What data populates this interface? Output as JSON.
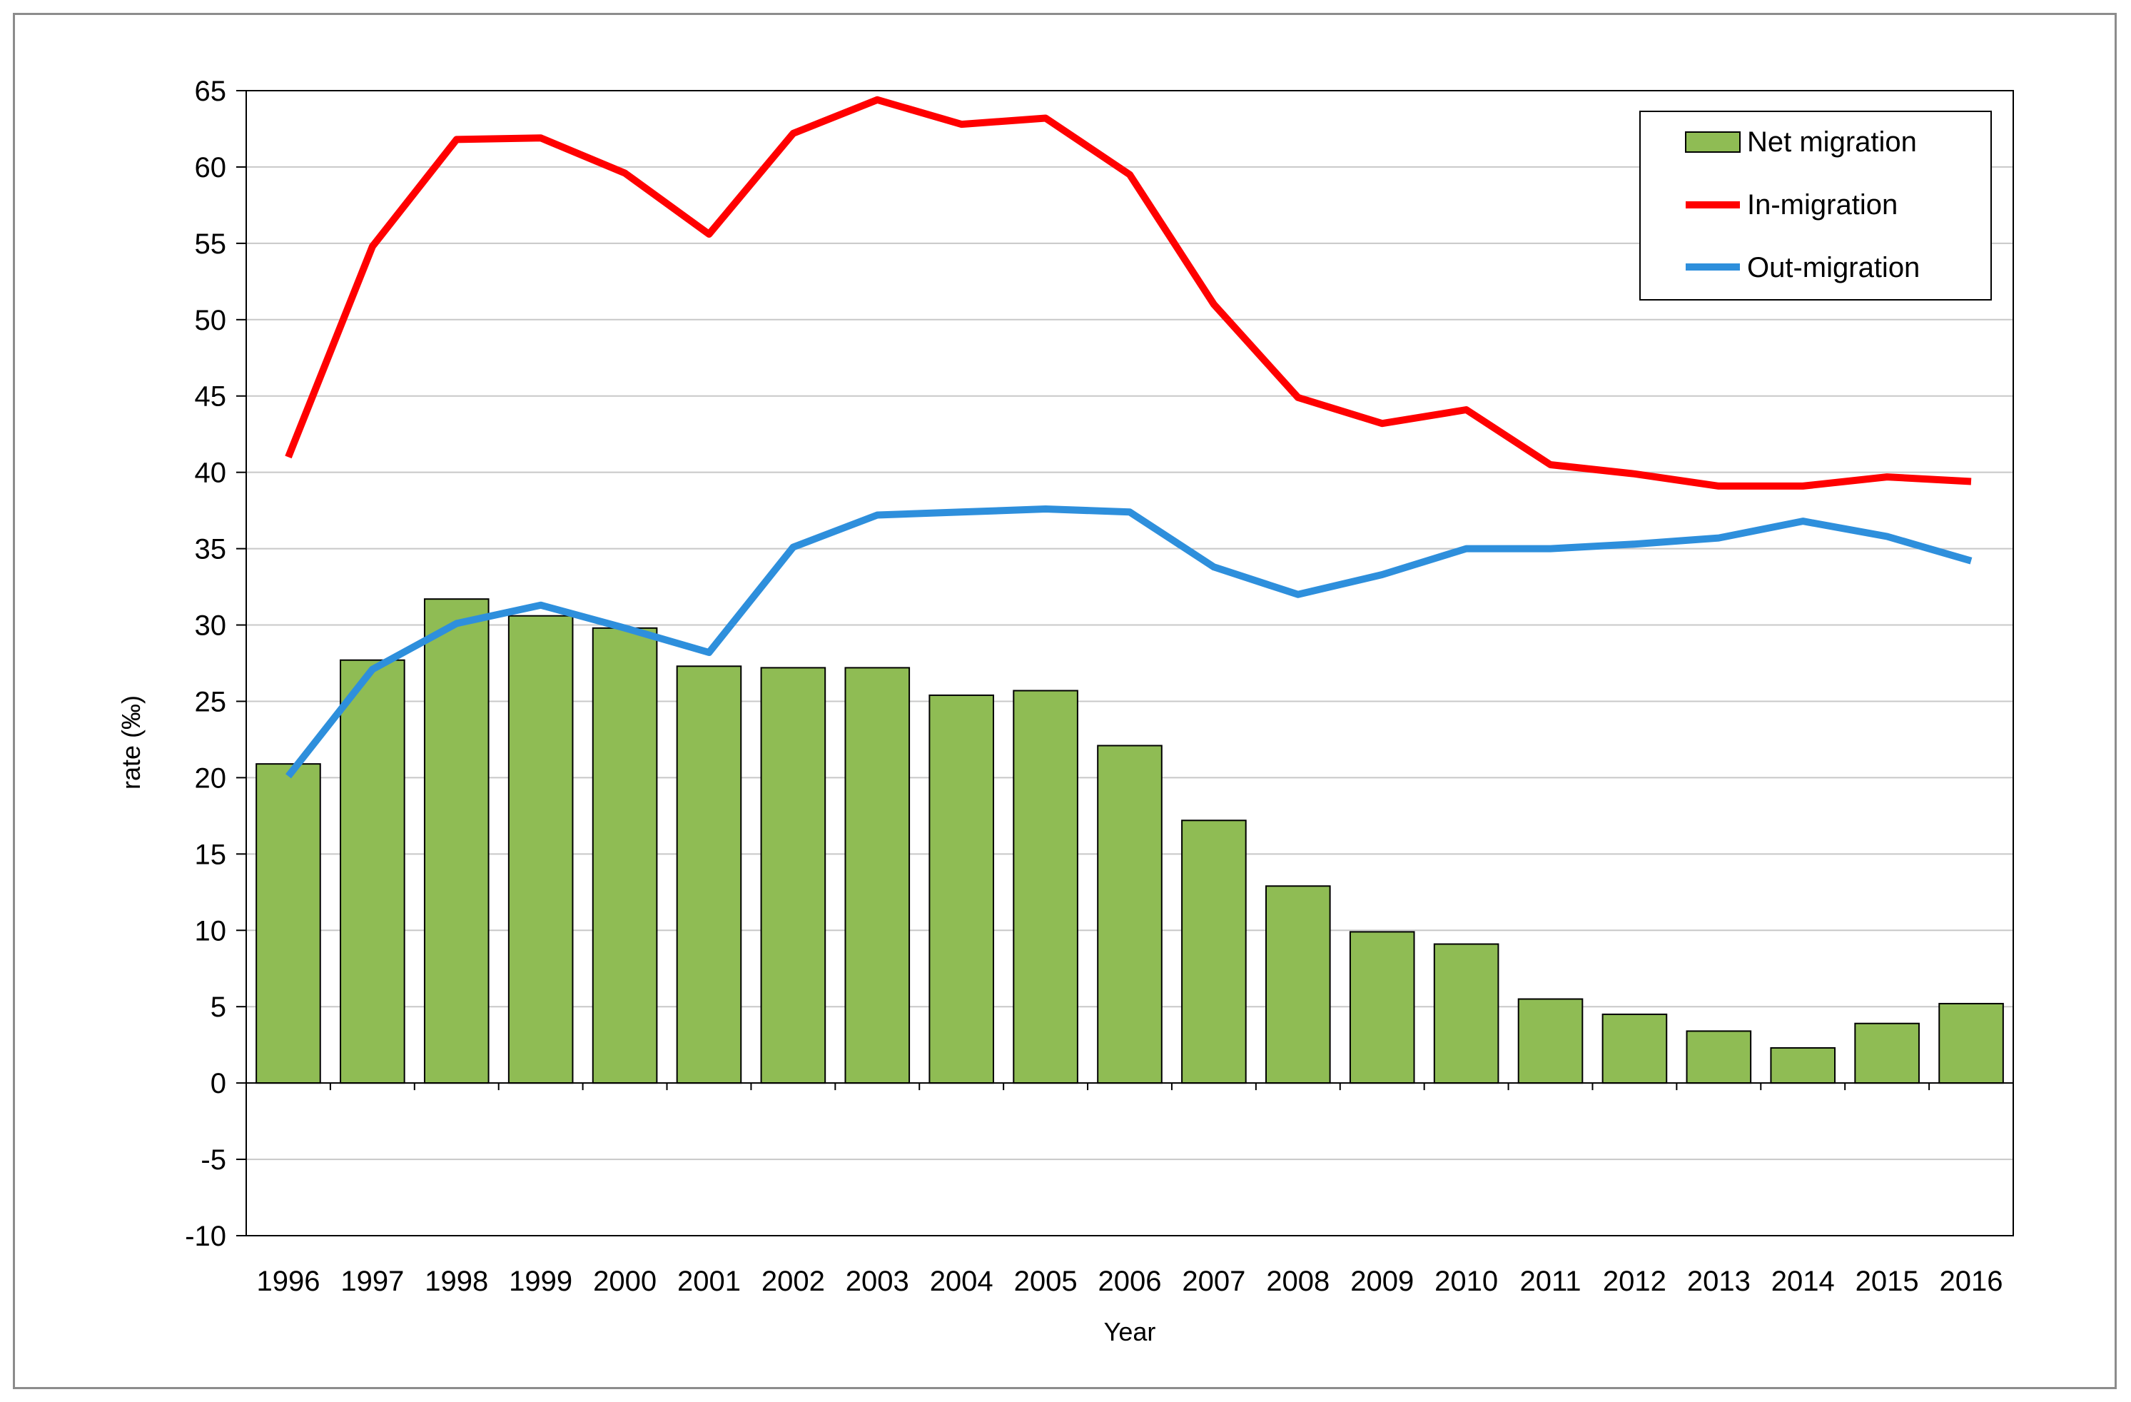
{
  "chart_data": {
    "type": "bar",
    "title": "",
    "xlabel": "Year",
    "ylabel": "rate (‰)",
    "ylim": [
      -10,
      65
    ],
    "ytick_step": 5,
    "grid": true,
    "legend_position": "top-right",
    "categories": [
      "1996",
      "1997",
      "1998",
      "1999",
      "2000",
      "2001",
      "2002",
      "2003",
      "2004",
      "2005",
      "2006",
      "2007",
      "2008",
      "2009",
      "2010",
      "2011",
      "2012",
      "2013",
      "2014",
      "2015",
      "2016"
    ],
    "series": [
      {
        "name": "Net migration",
        "kind": "bar",
        "color": "#8fbc54",
        "values": [
          20.9,
          27.7,
          31.7,
          30.6,
          29.8,
          27.3,
          27.2,
          27.2,
          25.4,
          25.7,
          22.1,
          17.2,
          12.9,
          9.9,
          9.1,
          5.5,
          4.5,
          3.4,
          2.3,
          3.9,
          5.2
        ]
      },
      {
        "name": "In-migration",
        "kind": "line",
        "color": "#ff0000",
        "values": [
          41.0,
          54.8,
          61.8,
          61.9,
          59.6,
          55.6,
          62.2,
          64.4,
          62.8,
          63.2,
          59.5,
          51.0,
          44.9,
          43.2,
          44.1,
          40.5,
          39.9,
          39.1,
          39.1,
          39.7,
          39.4
        ]
      },
      {
        "name": "Out-migration",
        "kind": "line",
        "color": "#2e8fdc",
        "values": [
          20.1,
          27.1,
          30.1,
          31.3,
          29.8,
          28.2,
          35.1,
          37.2,
          37.4,
          37.6,
          37.4,
          33.8,
          32.0,
          33.3,
          35.0,
          35.0,
          35.3,
          35.7,
          36.8,
          35.8,
          34.2
        ]
      }
    ]
  }
}
